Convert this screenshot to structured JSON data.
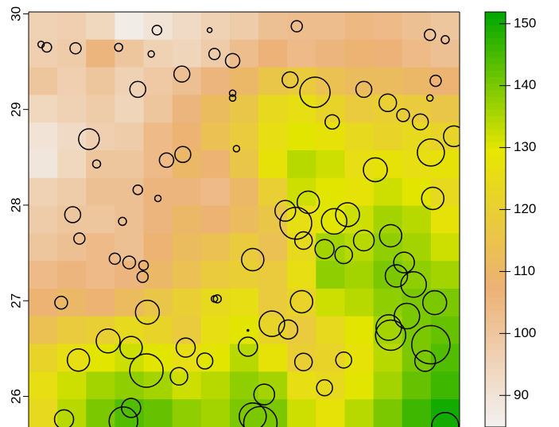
{
  "chart_data": {
    "type": "heatmap",
    "xlim": [
      -84,
      -79.5
    ],
    "ylim": [
      25.68,
      30.02
    ],
    "yticks": [
      26,
      27,
      28,
      29,
      30
    ],
    "z": [
      [
        96,
        97,
        94,
        87,
        90,
        93,
        96,
        98,
        102,
        103,
        103,
        105,
        104,
        102,
        100
      ],
      [
        97,
        98,
        106,
        100,
        96,
        95,
        98,
        103,
        107,
        104,
        106,
        108,
        107,
        104,
        102
      ],
      [
        100,
        97,
        100,
        96,
        99,
        102,
        106,
        110,
        116,
        118,
        114,
        112,
        112,
        110,
        108
      ],
      [
        94,
        96,
        98,
        95,
        100,
        106,
        112,
        116,
        124,
        126,
        122,
        118,
        120,
        118,
        116
      ],
      [
        90,
        93,
        97,
        98,
        104,
        108,
        114,
        118,
        126,
        130,
        128,
        124,
        122,
        124,
        122
      ],
      [
        89,
        94,
        100,
        100,
        104,
        110,
        108,
        116,
        128,
        134,
        132,
        126,
        128,
        126,
        128
      ],
      [
        96,
        98,
        102,
        102,
        106,
        106,
        104,
        110,
        120,
        132,
        130,
        128,
        132,
        130,
        124
      ],
      [
        98,
        100,
        100,
        102,
        106,
        110,
        108,
        112,
        116,
        126,
        130,
        132,
        136,
        134,
        128
      ],
      [
        100,
        102,
        104,
        102,
        108,
        112,
        114,
        118,
        114,
        124,
        136,
        134,
        138,
        136,
        132
      ],
      [
        104,
        106,
        104,
        106,
        110,
        114,
        118,
        120,
        118,
        126,
        138,
        136,
        140,
        138,
        136
      ],
      [
        108,
        110,
        108,
        112,
        116,
        120,
        124,
        126,
        118,
        122,
        132,
        134,
        138,
        140,
        140
      ],
      [
        114,
        118,
        120,
        124,
        122,
        118,
        126,
        130,
        122,
        118,
        124,
        130,
        136,
        140,
        142
      ],
      [
        122,
        126,
        130,
        132,
        130,
        126,
        130,
        134,
        128,
        120,
        122,
        128,
        134,
        140,
        144
      ],
      [
        126,
        132,
        136,
        138,
        136,
        132,
        134,
        138,
        136,
        126,
        124,
        130,
        136,
        142,
        146
      ],
      [
        124,
        134,
        140,
        144,
        142,
        138,
        136,
        140,
        140,
        132,
        128,
        134,
        140,
        146,
        150
      ]
    ],
    "colors": [
      "#F2F2F2",
      "#ECB176",
      "#E6E600",
      "#00A600"
    ],
    "colorbar": {
      "lim": [
        84.9,
        151.9
      ],
      "ticks": [
        90,
        100,
        110,
        120,
        130,
        140,
        150
      ]
    },
    "points": {
      "x": [
        -83.87,
        -83.81,
        -83.51,
        -83.06,
        -82.72,
        -82.66,
        -82.11,
        -82.06,
        -81.87,
        -82.4,
        -82.86,
        -81.87,
        -81.87,
        -81.2,
        -81.27,
        -81.01,
        -80.83,
        -80.5,
        -80.25,
        -80.09,
        -79.91,
        -79.81,
        -79.65,
        -79.75,
        -79.81,
        -79.56,
        -79.8,
        -83.37,
        -83.29,
        -82.56,
        -82.39,
        -81.83,
        -80.38,
        -82.86,
        -82.65,
        -79.78,
        -83.54,
        -83.02,
        -83.47,
        -83.1,
        -82.95,
        -82.8,
        -82.81,
        -81.66,
        -81.32,
        -81.08,
        -81.21,
        -80.81,
        -80.67,
        -81.13,
        -80.91,
        -80.71,
        -80.5,
        -80.22,
        -80.08,
        -80.16,
        -79.98,
        -79.76,
        -83.66,
        -82.03,
        -82.06,
        -81.15,
        -82.76,
        -81.46,
        -81.29,
        -80.05,
        -80.24,
        -80.22,
        -79.8,
        -79.86,
        -83.17,
        -82.93,
        -82.36,
        -83.48,
        -82.16,
        -81.71,
        -81.13,
        -80.71,
        -82.77,
        -82.43,
        -81.54,
        -80.91,
        -83.01,
        -82.93,
        -83.63,
        -81.66,
        -81.58,
        -79.65,
        -81.71
      ],
      "y": [
        29.68,
        29.65,
        29.64,
        29.65,
        29.58,
        29.83,
        29.83,
        29.58,
        29.51,
        29.37,
        29.21,
        29.17,
        29.12,
        29.87,
        29.31,
        29.18,
        28.87,
        29.21,
        29.07,
        28.94,
        28.87,
        29.78,
        29.73,
        29.3,
        29.12,
        28.72,
        28.55,
        28.69,
        28.43,
        28.47,
        28.53,
        28.59,
        28.37,
        28.16,
        28.07,
        28.07,
        27.9,
        27.83,
        27.65,
        27.44,
        27.4,
        27.37,
        27.25,
        27.43,
        27.94,
        28.03,
        27.81,
        27.83,
        27.9,
        27.63,
        27.54,
        27.48,
        27.63,
        27.68,
        27.4,
        27.26,
        27.17,
        26.98,
        26.98,
        27.02,
        27.02,
        26.99,
        26.88,
        26.76,
        26.7,
        26.84,
        26.72,
        26.64,
        26.54,
        26.37,
        26.58,
        26.51,
        26.51,
        26.38,
        26.37,
        26.52,
        26.36,
        26.38,
        26.27,
        26.21,
        26.02,
        26.09,
        25.74,
        25.88,
        25.76,
        25.79,
        25.72,
        25.69,
        26.69
      ],
      "size": [
        4,
        6,
        7,
        5,
        4,
        6,
        3,
        7,
        9,
        10,
        10,
        4,
        4,
        7,
        10,
        19,
        9,
        10,
        11,
        8,
        10,
        7,
        5,
        7,
        4,
        13,
        17,
        13,
        5,
        9,
        10,
        4,
        15,
        6,
        4,
        14,
        10,
        5,
        7,
        7,
        8,
        6,
        7,
        14,
        13,
        14,
        20,
        16,
        15,
        11,
        12,
        11,
        13,
        14,
        13,
        14,
        16,
        15,
        8,
        5,
        4,
        14,
        15,
        16,
        12,
        16,
        16,
        19,
        24,
        13,
        15,
        14,
        12,
        14,
        10,
        12,
        11,
        10,
        21,
        11,
        13,
        10,
        18,
        12,
        12,
        17,
        21,
        17,
        1
      ]
    }
  }
}
